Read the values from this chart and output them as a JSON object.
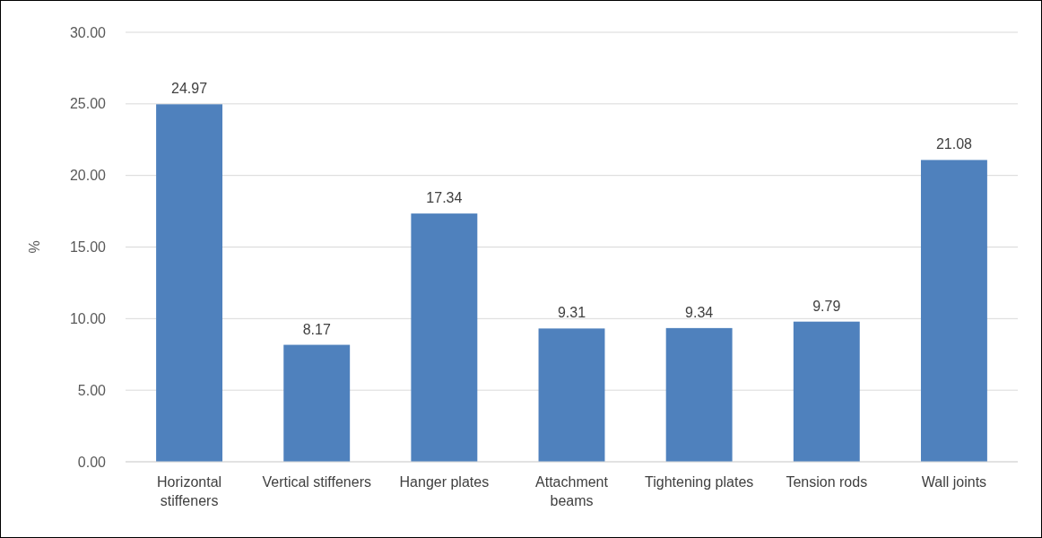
{
  "chart_data": {
    "type": "bar",
    "categories": [
      "Horizontal stiffeners",
      "Vertical stiffeners",
      "Hanger plates",
      "Attachment beams",
      "Tightening plates",
      "Tension rods",
      "Wall joints"
    ],
    "values": [
      24.97,
      8.17,
      17.34,
      9.31,
      9.34,
      9.79,
      21.08
    ],
    "color": "#4f81bd",
    "ylabel": "%",
    "ylim": [
      0,
      30
    ],
    "yticks": [
      {
        "value": 0,
        "label": "0.00"
      },
      {
        "value": 5,
        "label": "5.00"
      },
      {
        "value": 10,
        "label": "10.00"
      },
      {
        "value": 15,
        "label": "15.00"
      },
      {
        "value": 20,
        "label": "20.00"
      },
      {
        "value": 25,
        "label": "25.00"
      },
      {
        "value": 30,
        "label": "30.00"
      }
    ],
    "grid": "y",
    "data_labels": true
  }
}
